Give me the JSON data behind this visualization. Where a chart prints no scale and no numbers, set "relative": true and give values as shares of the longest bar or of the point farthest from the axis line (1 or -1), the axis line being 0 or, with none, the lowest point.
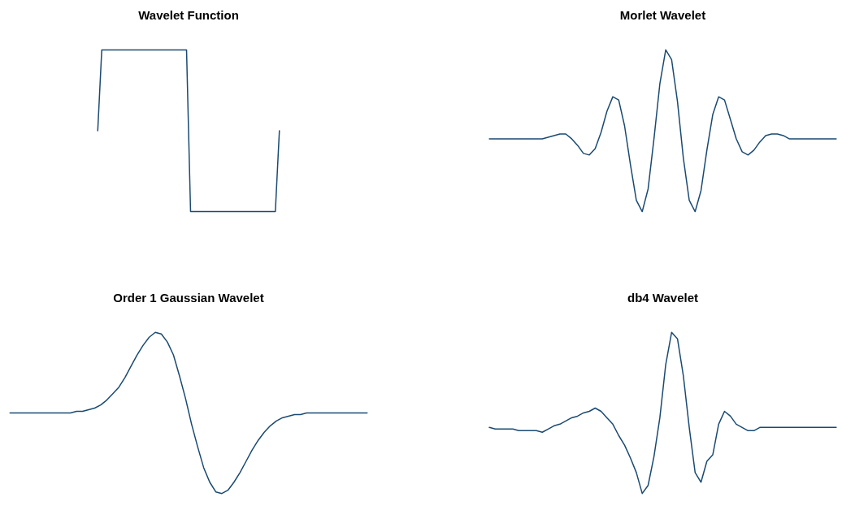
{
  "chart_data": [
    {
      "type": "line",
      "title": "Wavelet Function",
      "relative": true,
      "color": "#1a4a72",
      "categories": [
        null,
        null,
        null,
        null,
        null,
        null,
        null,
        null,
        null,
        null,
        null,
        null,
        null,
        null,
        null,
        null,
        null,
        null,
        null,
        null,
        null,
        null,
        null,
        null,
        null,
        null,
        null,
        null,
        null,
        null,
        null,
        null,
        null,
        null,
        null,
        null,
        null,
        null,
        null,
        null,
        null,
        null,
        null,
        null,
        null,
        null,
        null,
        null,
        null,
        null,
        null,
        null,
        null,
        null,
        null,
        null,
        null,
        null,
        null,
        null,
        null,
        null,
        null,
        null,
        null,
        null,
        null,
        null,
        null,
        null,
        null,
        null,
        null,
        null,
        null,
        null,
        null,
        null,
        null,
        null,
        null,
        null,
        null,
        null,
        null,
        null,
        null,
        null,
        null,
        null
      ],
      "values": [
        null,
        null,
        null,
        null,
        null,
        null,
        null,
        null,
        null,
        null,
        null,
        null,
        null,
        null,
        null,
        null,
        null,
        null,
        null,
        null,
        null,
        null,
        0.5,
        1,
        1,
        1,
        1,
        1,
        1,
        1,
        1,
        1,
        1,
        1,
        1,
        1,
        1,
        1,
        1,
        1,
        1,
        1,
        1,
        1,
        1,
        0,
        0,
        0,
        0,
        0,
        0,
        0,
        0,
        0,
        0,
        0,
        0,
        0,
        0,
        0,
        0,
        0,
        0,
        0,
        0,
        0,
        0,
        0.5,
        null,
        null,
        null,
        null,
        null,
        null,
        null,
        null,
        null,
        null,
        null,
        null,
        null,
        null,
        null,
        null,
        null,
        null,
        null,
        null,
        null,
        null
      ]
    },
    {
      "type": "line",
      "title": "Morlet Wavelet",
      "relative": true,
      "color": "#1a4a72",
      "categories": [
        null,
        null,
        null,
        null,
        null,
        null,
        null,
        null,
        null,
        null,
        null,
        null,
        null,
        null,
        null,
        null,
        null,
        null,
        null,
        null,
        null,
        null,
        null,
        null,
        null,
        null,
        null,
        null,
        null,
        null,
        null,
        null,
        null,
        null,
        null,
        null,
        null,
        null,
        null,
        null,
        null,
        null,
        null,
        null,
        null,
        null,
        null,
        null,
        null,
        null,
        null,
        null,
        null,
        null,
        null,
        null,
        null,
        null,
        null,
        null
      ],
      "values": [
        0.45,
        0.45,
        0.45,
        0.45,
        0.45,
        0.45,
        0.45,
        0.45,
        0.45,
        0.45,
        0.46,
        0.47,
        0.48,
        0.48,
        0.45,
        0.41,
        0.36,
        0.35,
        0.39,
        0.49,
        0.62,
        0.71,
        0.69,
        0.53,
        0.29,
        0.07,
        0.0,
        0.14,
        0.45,
        0.79,
        1.0,
        0.94,
        0.68,
        0.33,
        0.07,
        0.0,
        0.13,
        0.38,
        0.6,
        0.71,
        0.69,
        0.57,
        0.45,
        0.37,
        0.35,
        0.38,
        0.43,
        0.47,
        0.48,
        0.48,
        0.47,
        0.45,
        0.45,
        0.45,
        0.45,
        0.45,
        0.45,
        0.45,
        0.45,
        0.45
      ]
    },
    {
      "type": "line",
      "title": "Order 1 Gaussian Wavelet",
      "relative": true,
      "color": "#1a4a72",
      "categories": [
        null,
        null,
        null,
        null,
        null,
        null,
        null,
        null,
        null,
        null,
        null,
        null,
        null,
        null,
        null,
        null,
        null,
        null,
        null,
        null,
        null,
        null,
        null,
        null,
        null,
        null,
        null,
        null,
        null,
        null,
        null,
        null,
        null,
        null,
        null,
        null,
        null,
        null,
        null,
        null,
        null,
        null,
        null,
        null,
        null,
        null,
        null,
        null,
        null,
        null,
        null,
        null,
        null,
        null,
        null,
        null,
        null,
        null,
        null,
        null
      ],
      "values": [
        0.5,
        0.5,
        0.5,
        0.5,
        0.5,
        0.5,
        0.5,
        0.5,
        0.5,
        0.5,
        0.5,
        0.51,
        0.51,
        0.52,
        0.53,
        0.55,
        0.58,
        0.62,
        0.66,
        0.72,
        0.79,
        0.86,
        0.92,
        0.97,
        1.0,
        0.99,
        0.94,
        0.86,
        0.73,
        0.59,
        0.43,
        0.29,
        0.16,
        0.07,
        0.01,
        0.0,
        0.02,
        0.07,
        0.13,
        0.2,
        0.27,
        0.33,
        0.38,
        0.42,
        0.45,
        0.47,
        0.48,
        0.49,
        0.49,
        0.5,
        0.5,
        0.5,
        0.5,
        0.5,
        0.5,
        0.5,
        0.5,
        0.5,
        0.5,
        0.5
      ]
    },
    {
      "type": "line",
      "title": "db4 Wavelet",
      "relative": true,
      "color": "#1a4a72",
      "categories": [
        null,
        null,
        null,
        null,
        null,
        null,
        null,
        null,
        null,
        null,
        null,
        null,
        null,
        null,
        null,
        null,
        null,
        null,
        null,
        null,
        null,
        null,
        null,
        null,
        null,
        null,
        null,
        null,
        null,
        null,
        null,
        null,
        null,
        null,
        null,
        null,
        null,
        null,
        null,
        null,
        null,
        null,
        null,
        null,
        null,
        null,
        null,
        null,
        null,
        null,
        null,
        null,
        null,
        null,
        null,
        null,
        null,
        null,
        null,
        null
      ],
      "values": [
        0.41,
        0.4,
        0.4,
        0.4,
        0.4,
        0.39,
        0.39,
        0.39,
        0.39,
        0.38,
        0.4,
        0.42,
        0.43,
        0.45,
        0.47,
        0.48,
        0.5,
        0.51,
        0.53,
        0.51,
        0.47,
        0.43,
        0.36,
        0.3,
        0.22,
        0.13,
        0.0,
        0.05,
        0.23,
        0.47,
        0.8,
        1.0,
        0.96,
        0.73,
        0.41,
        0.13,
        0.07,
        0.2,
        0.24,
        0.43,
        0.51,
        0.48,
        0.43,
        0.41,
        0.39,
        0.39,
        0.41,
        0.41,
        0.41,
        0.41,
        0.41,
        0.41,
        0.41,
        0.41,
        0.41,
        0.41,
        0.41,
        0.41,
        0.41,
        0.41
      ]
    }
  ]
}
